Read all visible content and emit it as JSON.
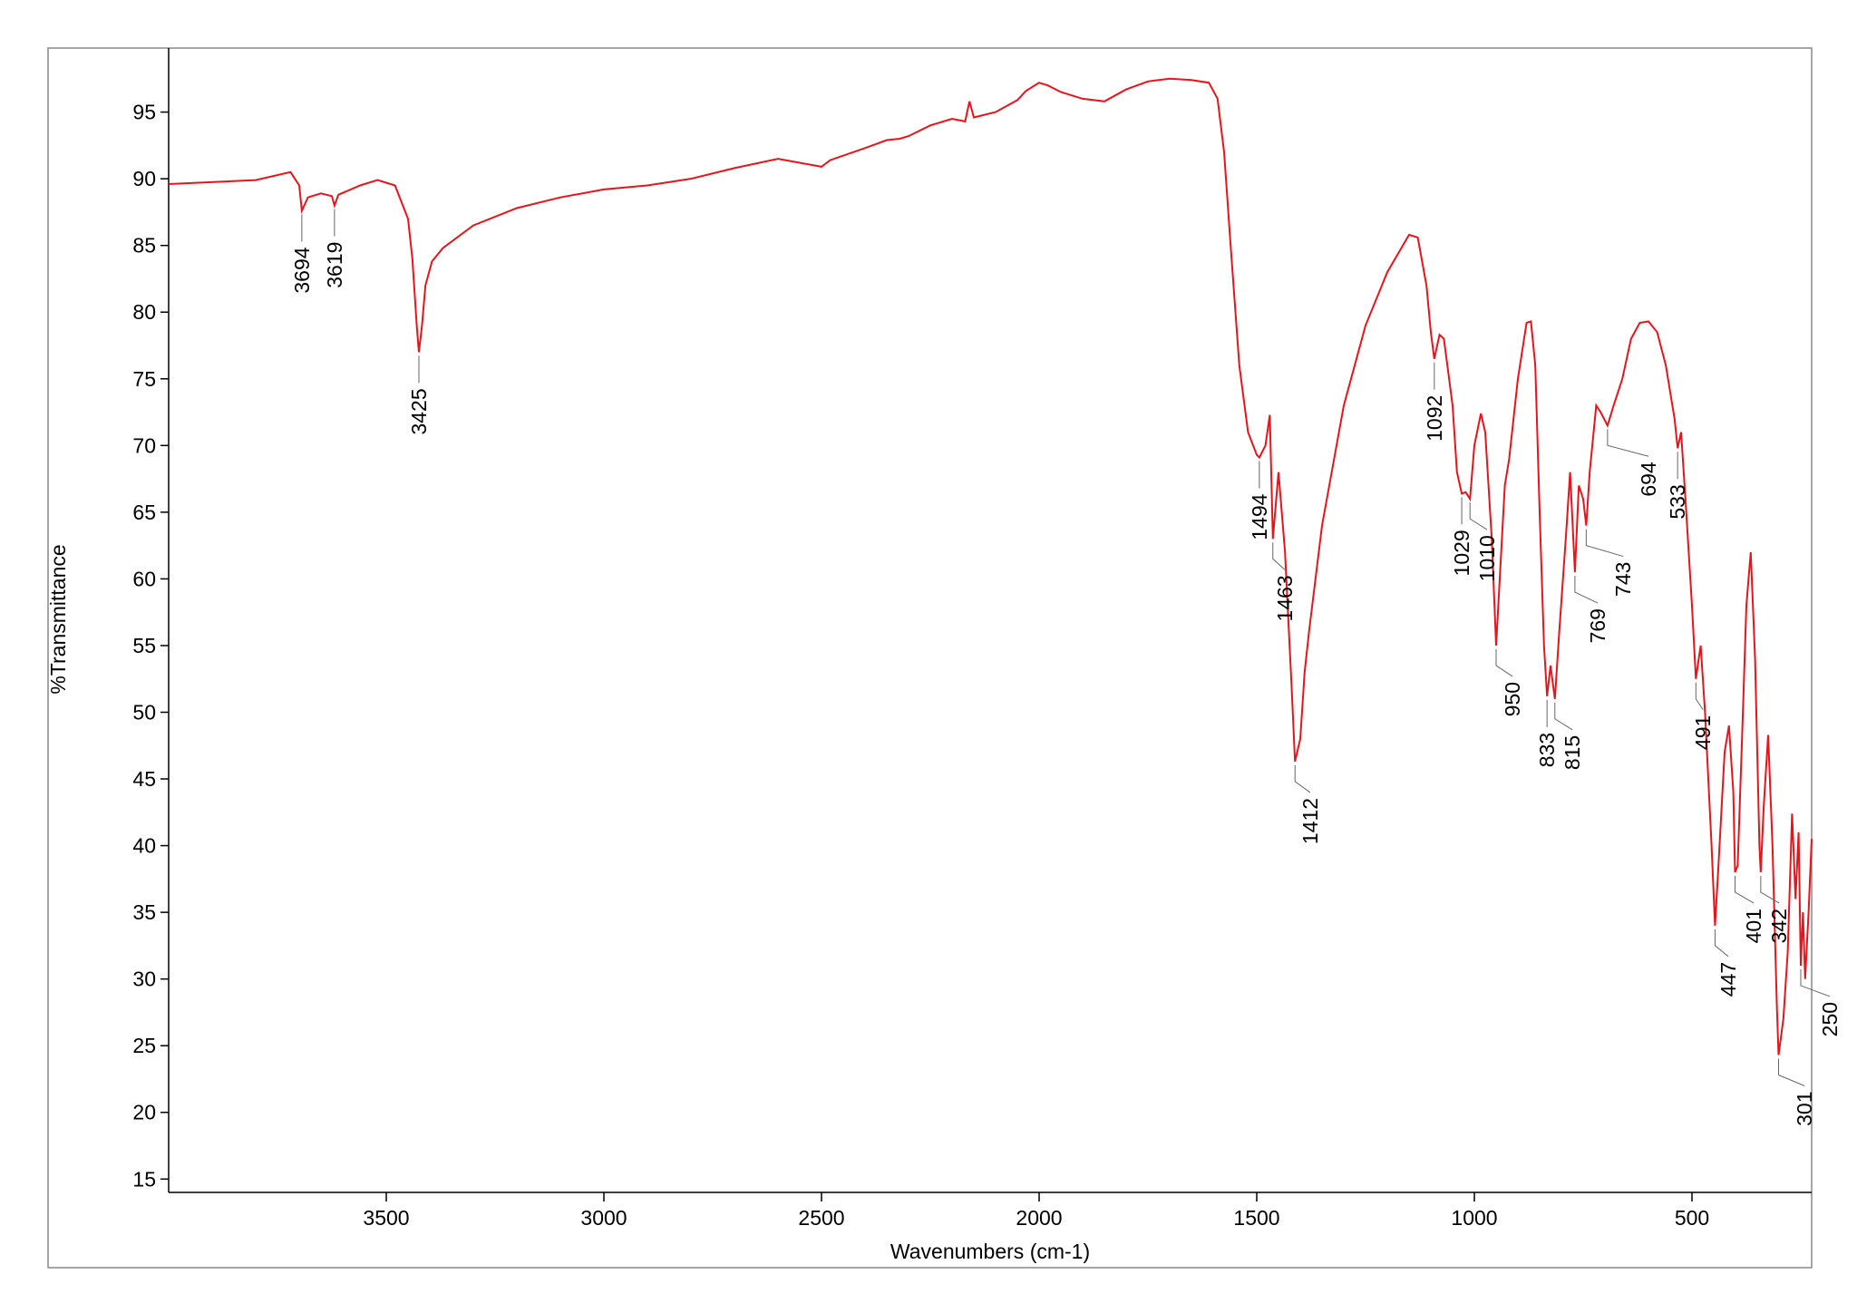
{
  "chart_data": {
    "type": "line",
    "ylabel": "%Transmittance",
    "xlabel": "Wavenumbers (cm-1)",
    "color": "#e8141b",
    "xlim": [
      4000,
      225
    ],
    "ylim": [
      14,
      99.8
    ],
    "xticks": [
      3500,
      3000,
      2500,
      2000,
      1500,
      1000,
      500
    ],
    "yticks": [
      15,
      20,
      25,
      30,
      35,
      40,
      45,
      50,
      55,
      60,
      65,
      70,
      75,
      80,
      85,
      90,
      95
    ],
    "x": [
      4000,
      3800,
      3720,
      3700,
      3694,
      3680,
      3650,
      3625,
      3619,
      3610,
      3560,
      3520,
      3480,
      3450,
      3440,
      3430,
      3425,
      3418,
      3410,
      3395,
      3370,
      3300,
      3200,
      3100,
      3000,
      2900,
      2800,
      2700,
      2600,
      2550,
      2500,
      2480,
      2400,
      2350,
      2320,
      2300,
      2250,
      2200,
      2170,
      2160,
      2150,
      2100,
      2050,
      2030,
      2000,
      1980,
      1950,
      1900,
      1850,
      1800,
      1750,
      1700,
      1650,
      1610,
      1590,
      1575,
      1560,
      1540,
      1520,
      1500,
      1494,
      1480,
      1470,
      1463,
      1450,
      1435,
      1420,
      1412,
      1400,
      1390,
      1380,
      1350,
      1300,
      1250,
      1200,
      1150,
      1130,
      1110,
      1100,
      1092,
      1080,
      1070,
      1050,
      1040,
      1029,
      1020,
      1010,
      1000,
      985,
      975,
      960,
      950,
      940,
      930,
      920,
      900,
      880,
      870,
      860,
      850,
      840,
      833,
      825,
      815,
      805,
      790,
      780,
      769,
      760,
      750,
      743,
      735,
      720,
      710,
      694,
      680,
      660,
      640,
      620,
      600,
      580,
      560,
      540,
      533,
      525,
      515,
      500,
      491,
      480,
      470,
      455,
      447,
      440,
      425,
      415,
      405,
      401,
      395,
      385,
      375,
      365,
      355,
      345,
      342,
      335,
      325,
      315,
      305,
      301,
      290,
      280,
      270,
      262,
      255,
      250,
      245,
      240,
      232,
      225
    ],
    "values": [
      89.6,
      89.9,
      90.5,
      89.5,
      87.6,
      88.6,
      88.9,
      88.7,
      88.0,
      88.8,
      89.5,
      89.9,
      89.5,
      87,
      84,
      79,
      77.0,
      79,
      82,
      83.8,
      84.8,
      86.5,
      87.8,
      88.6,
      89.2,
      89.5,
      90,
      90.8,
      91.5,
      91.2,
      90.9,
      91.4,
      92.3,
      92.9,
      93.0,
      93.2,
      94.0,
      94.5,
      94.3,
      95.8,
      94.6,
      95,
      95.9,
      96.6,
      97.2,
      97.0,
      96.5,
      96.0,
      95.8,
      96.7,
      97.3,
      97.5,
      97.4,
      97.2,
      96,
      92,
      85,
      76,
      71,
      69.3,
      69.1,
      70,
      72.3,
      63,
      68,
      62,
      52,
      46.3,
      48,
      53,
      56,
      64,
      73,
      79,
      83,
      85.8,
      85.6,
      82,
      78.5,
      76.5,
      78.3,
      78,
      73,
      68,
      66.4,
      66.5,
      66,
      70,
      72.4,
      71,
      63,
      55,
      61,
      67,
      69,
      75,
      79.2,
      79.3,
      76,
      65,
      55,
      51.2,
      53.5,
      51,
      56,
      63,
      68,
      60.5,
      67,
      66,
      64,
      68,
      73,
      72.5,
      71.5,
      73,
      75,
      78,
      79.2,
      79.3,
      78.5,
      76,
      72,
      69.8,
      71,
      66,
      58,
      52.5,
      55,
      50,
      40,
      34,
      38,
      47,
      49,
      44,
      38,
      38.5,
      48,
      58,
      62,
      54,
      40,
      38,
      43,
      48.3,
      40,
      28,
      24.3,
      27,
      32,
      42.4,
      36,
      41,
      31,
      35,
      30,
      35,
      40.5
    ],
    "peaks": [
      {
        "x": 3694,
        "y": 87.6
      },
      {
        "x": 3619,
        "y": 88.0
      },
      {
        "x": 3425,
        "y": 77.0
      },
      {
        "x": 1494,
        "y": 69.1
      },
      {
        "x": 1463,
        "y": 63
      },
      {
        "x": 1412,
        "y": 46.3
      },
      {
        "x": 1092,
        "y": 76.5
      },
      {
        "x": 1029,
        "y": 66.4
      },
      {
        "x": 1010,
        "y": 66
      },
      {
        "x": 950,
        "y": 55
      },
      {
        "x": 833,
        "y": 51.2
      },
      {
        "x": 815,
        "y": 51
      },
      {
        "x": 769,
        "y": 60.5
      },
      {
        "x": 743,
        "y": 64
      },
      {
        "x": 694,
        "y": 71.5
      },
      {
        "x": 533,
        "y": 69.8
      },
      {
        "x": 491,
        "y": 52.5
      },
      {
        "x": 447,
        "y": 34
      },
      {
        "x": 401,
        "y": 38
      },
      {
        "x": 342,
        "y": 38
      },
      {
        "x": 301,
        "y": 24.3
      },
      {
        "x": 250,
        "y": 31
      }
    ]
  }
}
